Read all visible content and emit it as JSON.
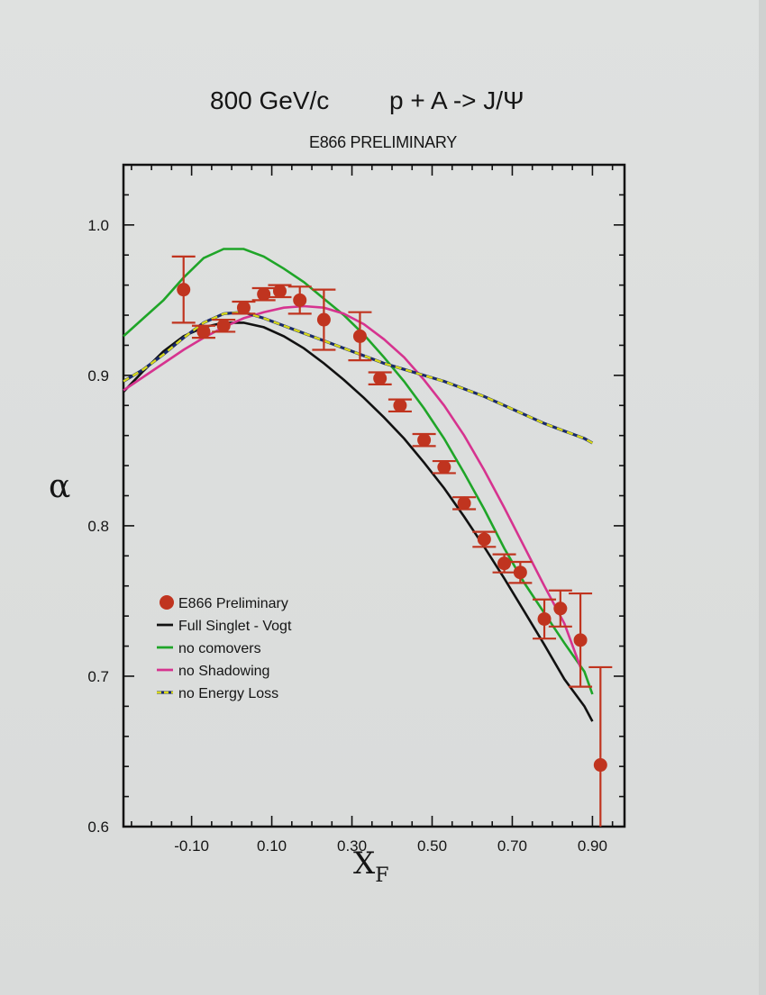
{
  "header": {
    "energy": "800 GeV/c",
    "reaction": "p + A -> J/Ψ",
    "subtitle": "E866 PRELIMINARY"
  },
  "chart_data": {
    "type": "scatter",
    "title": "800 GeV/c   p + A -> J/Ψ",
    "subtitle": "E866 PRELIMINARY",
    "xlabel": "X",
    "xlabel_sub": "F",
    "ylabel": "α",
    "xlim": [
      -0.27,
      0.98
    ],
    "ylim": [
      0.6,
      1.04
    ],
    "xticks": [
      -0.1,
      0.1,
      0.3,
      0.5,
      0.7,
      0.9
    ],
    "xtick_labels": [
      "-0.10",
      "0.10",
      "0.30",
      "0.50",
      "0.70",
      "0.90"
    ],
    "yticks": [
      0.6,
      0.7,
      0.8,
      0.9,
      1.0
    ],
    "ytick_labels": [
      "0.6",
      "0.7",
      "0.8",
      "0.9",
      "1.0"
    ],
    "grid": false,
    "legend_position": "lower-left",
    "points": {
      "name": "E866 Preliminary",
      "color": "#c0341f",
      "x": [
        -0.12,
        -0.07,
        -0.02,
        0.03,
        0.08,
        0.12,
        0.17,
        0.23,
        0.32,
        0.37,
        0.42,
        0.48,
        0.53,
        0.58,
        0.63,
        0.68,
        0.72,
        0.78,
        0.82,
        0.87,
        0.92
      ],
      "y": [
        0.957,
        0.929,
        0.933,
        0.945,
        0.954,
        0.956,
        0.95,
        0.937,
        0.926,
        0.898,
        0.88,
        0.857,
        0.839,
        0.815,
        0.791,
        0.775,
        0.769,
        0.738,
        0.745,
        0.724,
        0.641
      ],
      "err": [
        0.022,
        0.004,
        0.004,
        0.004,
        0.004,
        0.004,
        0.009,
        0.02,
        0.016,
        0.004,
        0.004,
        0.004,
        0.004,
        0.004,
        0.005,
        0.006,
        0.007,
        0.013,
        0.012,
        0.031,
        0.065
      ]
    },
    "series": [
      {
        "name": "Full Singlet - Vogt",
        "color": "#111111",
        "dashed": false,
        "x": [
          -0.27,
          -0.22,
          -0.17,
          -0.12,
          -0.07,
          -0.02,
          0.03,
          0.08,
          0.13,
          0.18,
          0.23,
          0.28,
          0.33,
          0.38,
          0.43,
          0.48,
          0.53,
          0.58,
          0.63,
          0.68,
          0.73,
          0.78,
          0.83,
          0.88,
          0.9
        ],
        "y": [
          0.889,
          0.903,
          0.916,
          0.926,
          0.932,
          0.935,
          0.935,
          0.932,
          0.926,
          0.918,
          0.908,
          0.897,
          0.885,
          0.872,
          0.858,
          0.842,
          0.825,
          0.806,
          0.786,
          0.765,
          0.743,
          0.721,
          0.698,
          0.68,
          0.67
        ]
      },
      {
        "name": "no comovers",
        "color": "#1fa528",
        "dashed": false,
        "x": [
          -0.27,
          -0.22,
          -0.17,
          -0.12,
          -0.07,
          -0.02,
          0.03,
          0.08,
          0.13,
          0.18,
          0.23,
          0.28,
          0.33,
          0.38,
          0.43,
          0.48,
          0.53,
          0.58,
          0.63,
          0.68,
          0.73,
          0.78,
          0.83,
          0.88,
          0.9
        ],
        "y": [
          0.926,
          0.938,
          0.95,
          0.965,
          0.978,
          0.984,
          0.984,
          0.979,
          0.971,
          0.962,
          0.951,
          0.94,
          0.927,
          0.912,
          0.896,
          0.878,
          0.858,
          0.835,
          0.811,
          0.785,
          0.762,
          0.742,
          0.722,
          0.703,
          0.688
        ]
      },
      {
        "name": "no Shadowing",
        "color": "#d6338f",
        "dashed": false,
        "x": [
          -0.27,
          -0.22,
          -0.17,
          -0.12,
          -0.07,
          -0.02,
          0.03,
          0.08,
          0.13,
          0.18,
          0.23,
          0.28,
          0.33,
          0.38,
          0.43,
          0.48,
          0.53,
          0.58,
          0.63,
          0.68,
          0.73,
          0.78,
          0.83,
          0.87
        ],
        "y": [
          0.89,
          0.899,
          0.908,
          0.917,
          0.925,
          0.932,
          0.938,
          0.942,
          0.945,
          0.946,
          0.945,
          0.941,
          0.934,
          0.924,
          0.912,
          0.897,
          0.88,
          0.86,
          0.837,
          0.812,
          0.786,
          0.76,
          0.735,
          0.706
        ]
      },
      {
        "name": "no Energy Loss",
        "color": "#d8d81a",
        "dashed": true,
        "x": [
          -0.27,
          -0.22,
          -0.17,
          -0.12,
          -0.07,
          -0.02,
          0.03,
          0.08,
          0.13,
          0.18,
          0.23,
          0.28,
          0.33,
          0.38,
          0.43,
          0.48,
          0.53,
          0.58,
          0.63,
          0.68,
          0.73,
          0.78,
          0.83,
          0.88,
          0.9
        ],
        "y": [
          0.896,
          0.904,
          0.914,
          0.925,
          0.935,
          0.941,
          0.942,
          0.938,
          0.933,
          0.928,
          0.923,
          0.918,
          0.913,
          0.908,
          0.904,
          0.9,
          0.896,
          0.891,
          0.886,
          0.88,
          0.874,
          0.868,
          0.863,
          0.858,
          0.855
        ]
      }
    ]
  }
}
